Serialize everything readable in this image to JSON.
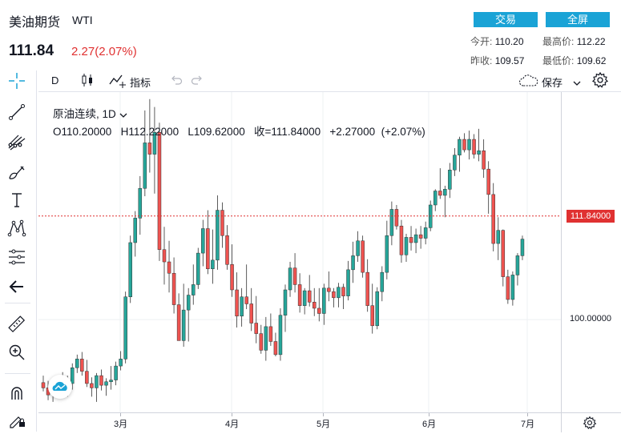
{
  "header": {
    "title": "美油期货",
    "subtitle": "WTI",
    "price": "111.84",
    "change": "2.27(2.07%)",
    "trade_button": "交易",
    "fullscreen_button": "全屏",
    "stats": {
      "open_label": "今开:",
      "open_value": "110.20",
      "high_label": "最高价:",
      "high_value": "112.22",
      "prev_close_label": "昨收:",
      "prev_close_value": "109.57",
      "low_label": "最低价:",
      "low_value": "109.62"
    }
  },
  "toolbar": {
    "interval": "D",
    "indicators_label": "指标",
    "save_label": "保存"
  },
  "legend": {
    "symbol": "原油连续",
    "interval": "1D",
    "ohlc_text": "O110.20000   H112.22000   L109.62000   收=111.84000   +2.27000  (+2.07%)"
  },
  "colors": {
    "up": "#26a69a",
    "down": "#ef5350",
    "accent": "#1aa3d6",
    "last_price": "#e03131"
  },
  "icons": [
    "crosshair-icon",
    "trendline-icon",
    "pitchfork-icon",
    "brush-icon",
    "text-icon",
    "pattern-icon",
    "measure-icon",
    "back-arrow-icon",
    "ruler-icon",
    "zoom-in-icon",
    "magnet-icon",
    "pencil-lock-icon",
    "candles-icon",
    "indicator-icon",
    "undo-icon",
    "redo-icon",
    "cloud-icon",
    "chevron-down-icon",
    "gear-icon",
    "logo-icon"
  ],
  "chart_data": {
    "type": "candlestick",
    "price_axis": {
      "ticks": [
        "100.00000"
      ],
      "last_price_label": "111.84000",
      "ylim": [
        89.4,
        126
      ]
    },
    "time_axis": {
      "labels": [
        "3月",
        "4月",
        "5月",
        "6月",
        "7月"
      ]
    },
    "grid": true,
    "candles_ohlc": [
      [
        92.8,
        93.6,
        91.8,
        92.2
      ],
      [
        92.2,
        93.0,
        90.8,
        91.4
      ],
      [
        91.4,
        92.2,
        90.6,
        91.6
      ],
      [
        91.6,
        93.5,
        91.2,
        93.3
      ],
      [
        93.3,
        94.0,
        91.2,
        91.8
      ],
      [
        91.8,
        93.6,
        91.2,
        92.7
      ],
      [
        92.7,
        95.0,
        92.0,
        94.5
      ],
      [
        94.5,
        96.0,
        93.9,
        95.5
      ],
      [
        95.5,
        96.3,
        93.6,
        94.1
      ],
      [
        94.1,
        95.4,
        92.3,
        92.7
      ],
      [
        92.7,
        93.4,
        91.2,
        92.2
      ],
      [
        92.2,
        93.9,
        90.6,
        93.6
      ],
      [
        93.6,
        94.3,
        91.9,
        92.5
      ],
      [
        92.5,
        93.3,
        91.3,
        92.9
      ],
      [
        92.9,
        94.7,
        92.0,
        93.1
      ],
      [
        93.1,
        95.2,
        92.5,
        94.7
      ],
      [
        94.7,
        96.4,
        94.2,
        95.5
      ],
      [
        95.5,
        103.2,
        95.0,
        102.6
      ],
      [
        102.6,
        109.6,
        101.9,
        108.8
      ],
      [
        108.8,
        112.4,
        107.2,
        111.6
      ],
      [
        111.6,
        116.4,
        109.7,
        115.0
      ],
      [
        115.0,
        123.9,
        114.1,
        120.2
      ],
      [
        120.2,
        125.2,
        116.8,
        118.9
      ],
      [
        118.9,
        124.3,
        114.4,
        121.4
      ],
      [
        121.4,
        122.5,
        106.7,
        108.0
      ],
      [
        108.0,
        110.6,
        104.0,
        106.6
      ],
      [
        106.6,
        109.0,
        103.1,
        105.3
      ],
      [
        105.3,
        107.1,
        100.7,
        101.7
      ],
      [
        101.7,
        103.0,
        97.6,
        97.6
      ],
      [
        97.6,
        104.1,
        96.9,
        101.1
      ],
      [
        101.1,
        103.6,
        97.5,
        102.8
      ],
      [
        102.8,
        106.3,
        101.7,
        104.0
      ],
      [
        104.0,
        108.2,
        103.5,
        107.6
      ],
      [
        107.6,
        111.4,
        106.1,
        110.4
      ],
      [
        110.4,
        112.5,
        105.2,
        105.8
      ],
      [
        105.8,
        110.3,
        104.1,
        106.8
      ],
      [
        106.8,
        114.2,
        105.7,
        112.5
      ],
      [
        112.5,
        113.4,
        108.2,
        109.6
      ],
      [
        109.6,
        110.8,
        105.7,
        106.3
      ],
      [
        106.3,
        108.6,
        102.6,
        103.4
      ],
      [
        103.4,
        105.4,
        99.1,
        100.4
      ],
      [
        100.4,
        103.6,
        99.2,
        102.6
      ],
      [
        102.6,
        106.3,
        101.2,
        101.8
      ],
      [
        101.8,
        103.6,
        98.7,
        99.6
      ],
      [
        99.6,
        102.7,
        97.3,
        98.4
      ],
      [
        98.4,
        99.4,
        96.1,
        96.5
      ],
      [
        96.5,
        100.3,
        95.3,
        99.2
      ],
      [
        99.2,
        100.7,
        97.0,
        97.5
      ],
      [
        97.5,
        98.5,
        95.8,
        96.0
      ],
      [
        96.0,
        101.3,
        95.3,
        100.5
      ],
      [
        100.5,
        104.0,
        98.6,
        103.4
      ],
      [
        103.4,
        106.6,
        102.6,
        105.9
      ],
      [
        105.9,
        107.6,
        103.1,
        104.0
      ],
      [
        104.0,
        105.3,
        100.8,
        101.6
      ],
      [
        101.6,
        103.6,
        100.6,
        103.3
      ],
      [
        103.3,
        105.1,
        101.5,
        102.0
      ],
      [
        102.0,
        103.6,
        100.4,
        101.3
      ],
      [
        101.3,
        103.6,
        99.8,
        100.7
      ],
      [
        100.7,
        104.1,
        99.4,
        103.6
      ],
      [
        103.6,
        105.5,
        102.1,
        103.2
      ],
      [
        103.2,
        103.6,
        101.4,
        102.5
      ],
      [
        102.5,
        104.2,
        101.4,
        103.7
      ],
      [
        103.7,
        104.1,
        101.2,
        102.7
      ],
      [
        102.7,
        106.7,
        102.2,
        105.7
      ],
      [
        105.7,
        108.9,
        104.2,
        107.3
      ],
      [
        107.3,
        110.1,
        106.6,
        109.0
      ],
      [
        109.0,
        109.6,
        104.8,
        105.4
      ],
      [
        105.4,
        106.9,
        100.9,
        101.6
      ],
      [
        101.6,
        104.1,
        98.4,
        99.3
      ],
      [
        99.3,
        103.7,
        98.9,
        103.2
      ],
      [
        103.2,
        106.1,
        102.1,
        105.4
      ],
      [
        105.4,
        111.3,
        104.6,
        109.6
      ],
      [
        109.6,
        113.5,
        108.5,
        112.6
      ],
      [
        112.6,
        113.1,
        110.3,
        110.7
      ],
      [
        110.7,
        111.4,
        106.5,
        107.4
      ],
      [
        107.4,
        109.8,
        106.6,
        109.4
      ],
      [
        109.4,
        110.7,
        107.9,
        108.8
      ],
      [
        108.8,
        110.4,
        107.6,
        109.7
      ],
      [
        109.7,
        110.7,
        108.1,
        109.3
      ],
      [
        109.3,
        111.2,
        108.6,
        110.5
      ],
      [
        110.5,
        113.6,
        110.1,
        113.1
      ],
      [
        113.1,
        114.9,
        112.4,
        114.7
      ],
      [
        114.7,
        117.3,
        113.8,
        114.2
      ],
      [
        114.2,
        115.3,
        111.7,
        114.9
      ],
      [
        114.9,
        117.9,
        113.9,
        117.1
      ],
      [
        117.1,
        119.6,
        116.4,
        118.8
      ],
      [
        118.8,
        120.9,
        116.9,
        120.6
      ],
      [
        120.6,
        121.3,
        119.1,
        119.4
      ],
      [
        119.4,
        121.6,
        118.3,
        120.6
      ],
      [
        120.6,
        121.2,
        118.4,
        118.9
      ],
      [
        118.9,
        121.8,
        118.1,
        119.3
      ],
      [
        119.3,
        120.6,
        116.2,
        117.2
      ],
      [
        117.2,
        118.1,
        112.1,
        114.3
      ],
      [
        114.3,
        115.6,
        107.8,
        108.7
      ],
      [
        108.7,
        111.7,
        106.8,
        110.2
      ],
      [
        110.2,
        110.3,
        103.8,
        104.9
      ],
      [
        104.9,
        105.7,
        101.8,
        102.3
      ],
      [
        102.3,
        105.5,
        101.6,
        105.1
      ],
      [
        105.1,
        107.6,
        103.9,
        107.3
      ],
      [
        107.3,
        109.6,
        106.8,
        109.2
      ]
    ],
    "last_price": 111.84
  }
}
